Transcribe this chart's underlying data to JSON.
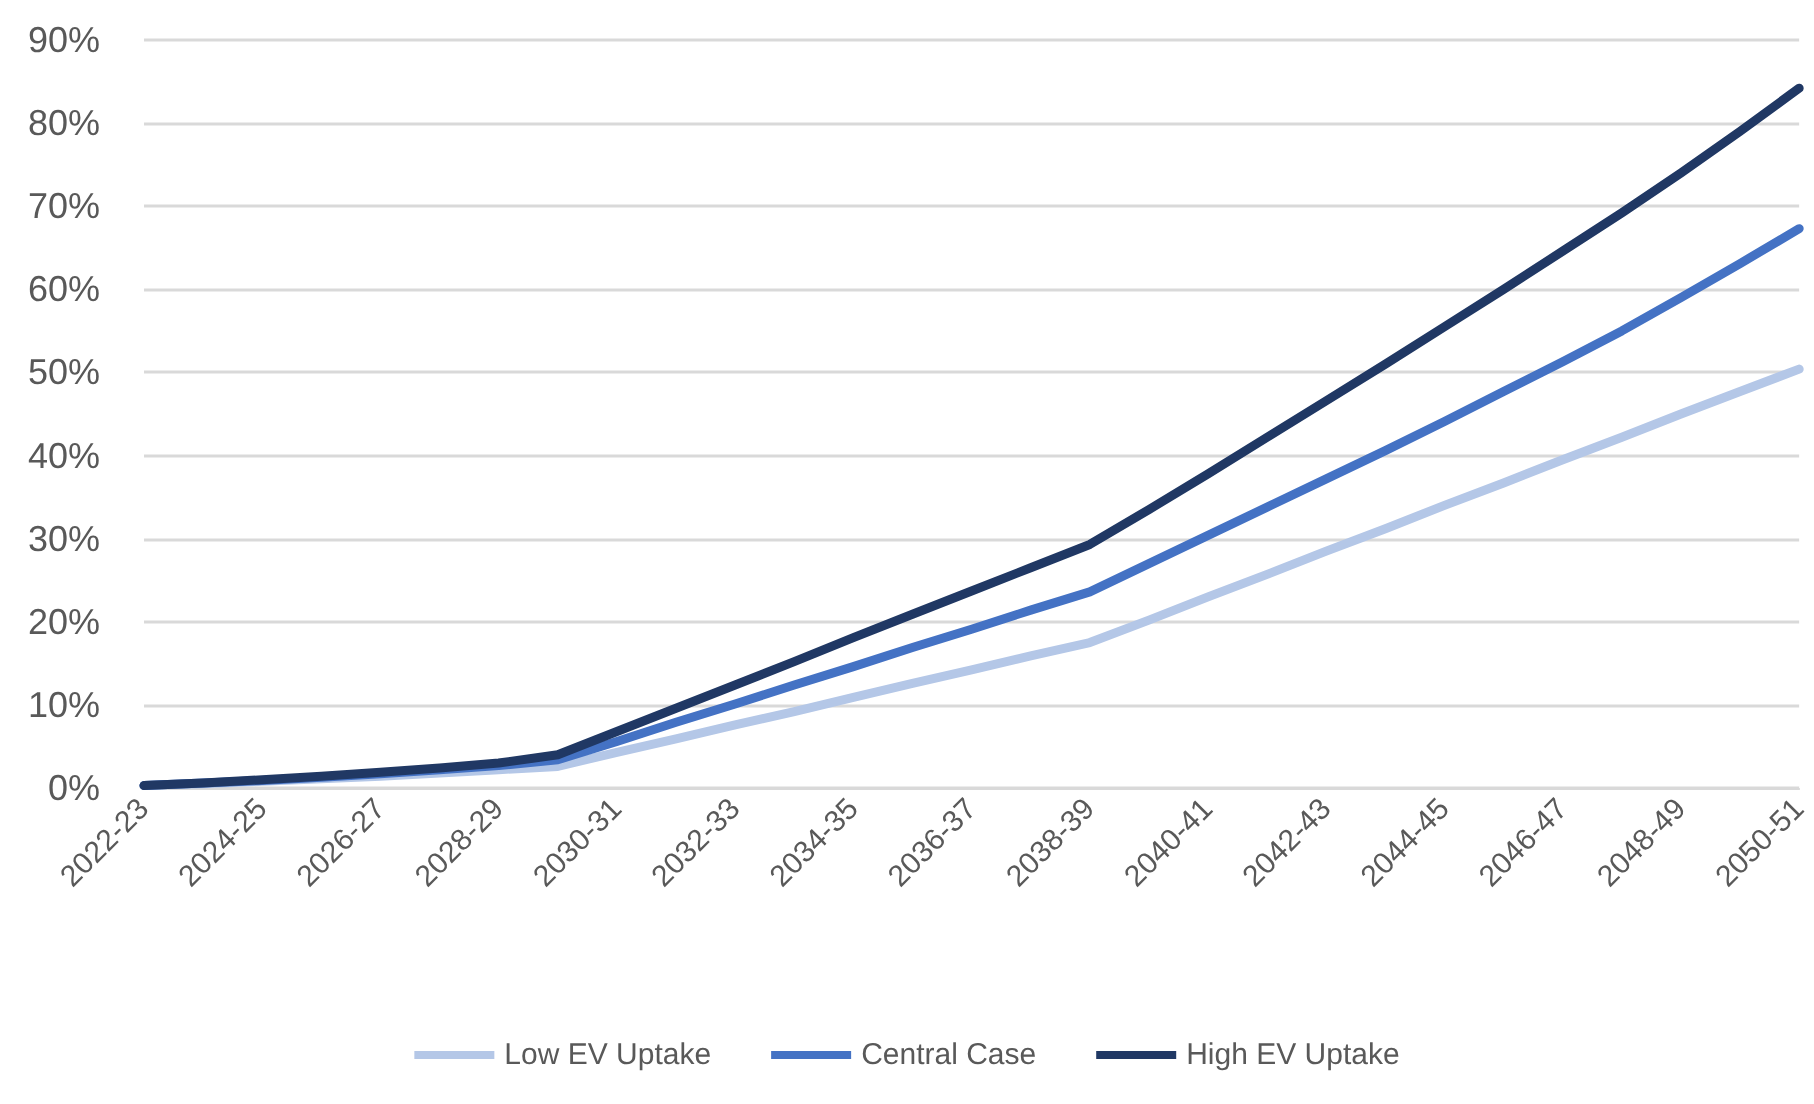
{
  "chart_data": {
    "type": "line",
    "categories": [
      "2022-23",
      null,
      "2024-25",
      null,
      "2026-27",
      null,
      "2028-29",
      null,
      "2030-31",
      null,
      "2032-33",
      null,
      "2034-35",
      null,
      "2036-37",
      null,
      "2038-39",
      null,
      "2040-41",
      null,
      "2042-43",
      null,
      "2044-45",
      null,
      "2046-47",
      null,
      "2048-49",
      null,
      "2050-51"
    ],
    "series": [
      {
        "name": "Low EV Uptake",
        "color": "#b4c7e7",
        "values": [
          0.3,
          0.5,
          0.8,
          1.1,
          1.4,
          1.8,
          2.2,
          2.6,
          4.3,
          5.9,
          7.6,
          9.2,
          10.9,
          12.6,
          14.2,
          15.9,
          17.5,
          20.2,
          23.0,
          25.7,
          28.5,
          31.2,
          34.0,
          36.7,
          39.5,
          42.2,
          45.0,
          47.7,
          50.4
        ]
      },
      {
        "name": "Central Case",
        "color": "#4472c4",
        "values": [
          0.3,
          0.6,
          0.9,
          1.3,
          1.7,
          2.2,
          2.7,
          3.4,
          5.6,
          7.9,
          10.1,
          12.4,
          14.6,
          16.9,
          19.1,
          21.4,
          23.6,
          27.0,
          30.4,
          33.8,
          37.2,
          40.6,
          44.1,
          47.7,
          51.3,
          55.0,
          59.0,
          63.1,
          67.3
        ]
      },
      {
        "name": "High EV Uptake",
        "color": "#203864",
        "values": [
          0.3,
          0.6,
          1.0,
          1.4,
          1.9,
          2.4,
          3.0,
          4.0,
          6.8,
          9.6,
          12.4,
          15.2,
          18.1,
          20.9,
          23.7,
          26.5,
          29.3,
          33.5,
          37.8,
          42.2,
          46.6,
          51.0,
          55.5,
          60.0,
          64.6,
          69.2,
          74.0,
          79.0,
          84.2
        ]
      }
    ],
    "ylim": [
      0,
      90
    ],
    "yticks": [
      {
        "value": 0,
        "label": "0%"
      },
      {
        "value": 10,
        "label": "10%"
      },
      {
        "value": 20,
        "label": "20%"
      },
      {
        "value": 30,
        "label": "30%"
      },
      {
        "value": 40,
        "label": "40%"
      },
      {
        "value": 50,
        "label": "50%"
      },
      {
        "value": 60,
        "label": "60%"
      },
      {
        "value": 70,
        "label": "70%"
      },
      {
        "value": 80,
        "label": "80%"
      },
      {
        "value": 90,
        "label": "90%"
      }
    ],
    "grid": "y",
    "legend": "bottom",
    "marker": "none",
    "line_style": "solid"
  }
}
